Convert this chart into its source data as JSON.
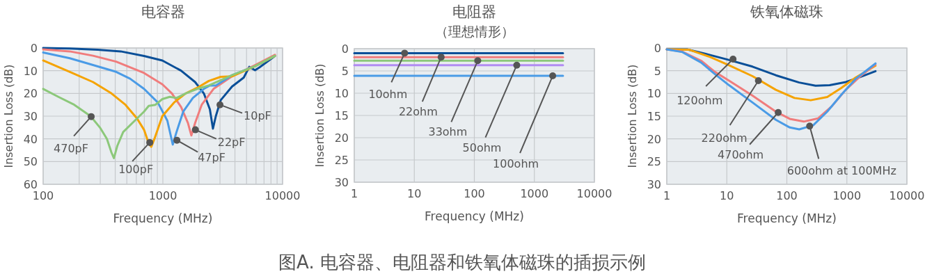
{
  "chart_data": [
    {
      "type": "line",
      "title": "电容器",
      "xlabel": "Frequency (MHz)",
      "ylabel": "Insertion Loss (dB)",
      "log": "x",
      "grid": true,
      "line_style": "solid",
      "xlim": [
        100,
        10000
      ],
      "ylim": [
        60,
        0
      ],
      "xticks": [
        100,
        {
          "value": 200,
          "label": null
        },
        {
          "value": 300,
          "label": null
        },
        {
          "value": 400,
          "label": null
        },
        {
          "value": 500,
          "label": null
        },
        {
          "value": 600,
          "label": null
        },
        {
          "value": 700,
          "label": null
        },
        {
          "value": 800,
          "label": null
        },
        {
          "value": 900,
          "label": null
        },
        1000,
        {
          "value": 2000,
          "label": null
        },
        {
          "value": 3000,
          "label": null
        },
        {
          "value": 4000,
          "label": null
        },
        {
          "value": 5000,
          "label": null
        },
        {
          "value": 6000,
          "label": null
        },
        {
          "value": 7000,
          "label": null
        },
        {
          "value": 8000,
          "label": null
        },
        {
          "value": 9000,
          "label": null
        },
        10000
      ],
      "yticks": [
        0,
        10,
        20,
        30,
        40,
        50,
        60
      ],
      "series": [
        {
          "color": "#0a4f98",
          "x": [
            100,
            167,
            285,
            445,
            696,
            990,
            1420,
            1860,
            2200,
            2470,
            2620,
            2770,
            3040,
            3780,
            4740,
            5270,
            5890,
            6430,
            8630
          ],
          "values": [
            0,
            0.2,
            0.8,
            1.5,
            3.5,
            5.5,
            10,
            15,
            20,
            27,
            35.5,
            30,
            23,
            17,
            13,
            8.3,
            9.8,
            8.5,
            3.5
          ]
        },
        {
          "color": "#f07c7c",
          "x": [
            100,
            167,
            261,
            407,
            696,
            990,
            1190,
            1420,
            1620,
            1730,
            1860,
            2110,
            2650,
            3780,
            5900,
            8630
          ],
          "values": [
            0.6,
            1.5,
            3.4,
            6,
            11,
            16,
            20,
            26,
            33,
            38.5,
            33,
            25,
            18,
            12.5,
            7.5,
            3
          ]
        },
        {
          "color": "#4a9be6",
          "x": [
            100,
            167,
            261,
            407,
            532,
            696,
            907,
            1090,
            1210,
            1300,
            1480,
            1780,
            2200,
            2470,
            2770,
            3780,
            5900,
            8630
          ],
          "values": [
            2,
            4.5,
            7.5,
            10.5,
            13.5,
            18,
            24,
            32,
            42.5,
            37,
            28,
            22,
            18,
            16.5,
            16.5,
            12,
            8,
            3.5
          ]
        },
        {
          "color": "#f5a300",
          "x": [
            100,
            167,
            261,
            372,
            487,
            608,
            696,
            762,
            800,
            850,
            990,
            1240,
            1550,
            1940,
            2420,
            3040,
            3780,
            5900,
            8630
          ],
          "values": [
            5.5,
            10.5,
            15,
            20,
            25,
            31,
            36,
            42,
            43.5,
            40,
            30,
            24,
            20,
            17.5,
            14.5,
            12.7,
            12.5,
            8,
            3.5
          ]
        },
        {
          "color": "#8cc87a",
          "x": [
            100,
            134,
            182,
            249,
            298,
            341,
            372,
            390,
            417,
            466,
            557,
            696,
            762,
            866,
            990,
            1140,
            1300,
            1550,
            1940,
            2420,
            3780,
            5900,
            8630
          ],
          "values": [
            18,
            21.5,
            25,
            30,
            35,
            40,
            46,
            48.5,
            43,
            37,
            33,
            28,
            25.5,
            25,
            22.5,
            21.5,
            22,
            20,
            18,
            16.5,
            12,
            8,
            3.5
          ]
        }
      ],
      "annotations": [
        {
          "text": "10pF",
          "x": 3000,
          "y": 25
        },
        {
          "text": "22pF",
          "x": 1870,
          "y": 36
        },
        {
          "text": "47pF",
          "x": 1310,
          "y": 40.6
        },
        {
          "text": "100pF",
          "x": 777,
          "y": 41.6
        },
        {
          "text": "470pF",
          "x": 252,
          "y": 30.2
        },
        "图A. 电容器、电阻器和铁氧体磁珠的插损示例"
      ]
    },
    {
      "type": "line",
      "title": "电阻器",
      "subtitle": "（理想情形）",
      "xlabel": "Frequency (MHz)",
      "ylabel": "Insertion Loss (dB)",
      "log": "x",
      "grid": true,
      "line_style": "solid",
      "xlim": [
        1,
        10000
      ],
      "ylim": [
        30,
        0
      ],
      "xticks": [
        1,
        10,
        100,
        1000,
        10000
      ],
      "yticks": [
        0,
        5,
        10,
        15,
        20,
        25,
        30
      ],
      "series": [
        {
          "color": "#0a4f98",
          "x": [
            1,
            3000
          ],
          "values": [
            1.0,
            1.0
          ]
        },
        {
          "color": "#f07c7c",
          "x": [
            1,
            3000
          ],
          "values": [
            1.9,
            1.9
          ]
        },
        {
          "color": "#8cc87a",
          "x": [
            1,
            3000
          ],
          "values": [
            2.7,
            2.7
          ]
        },
        {
          "color": "#b18cf2",
          "x": [
            1,
            3000
          ],
          "values": [
            3.7,
            3.7
          ]
        },
        {
          "color": "#4a9be6",
          "x": [
            1,
            3000
          ],
          "values": [
            6.1,
            6.1
          ]
        }
      ],
      "annotations": [
        {
          "text": "10ohm",
          "x": 6.9,
          "y": 1.0
        },
        {
          "text": "22ohm",
          "x": 28,
          "y": 1.9
        },
        {
          "text": "33ohm",
          "x": 114,
          "y": 2.7
        },
        {
          "text": "50ohm",
          "x": 509,
          "y": 3.7
        },
        {
          "text": "100ohm",
          "x": 2020,
          "y": 6.1
        }
      ]
    },
    {
      "type": "line",
      "title": "铁氧体磁珠",
      "xlabel": "Frequency (MHz)",
      "ylabel": "Insertion Loss (dB)",
      "log": "x",
      "grid": true,
      "line_style": "solid",
      "xlim": [
        1,
        10000
      ],
      "ylim": [
        30,
        0
      ],
      "xticks": [
        1,
        10,
        100,
        1000,
        10000
      ],
      "yticks": [
        0,
        5,
        10,
        15,
        20,
        25,
        30
      ],
      "series": [
        {
          "color": "#0a4f98",
          "x": [
            1,
            2.18,
            4.46,
            10,
            26.8,
            65.5,
            160,
            301,
            516,
            960,
            1510,
            3000
          ],
          "values": [
            0.3,
            0.3,
            1.3,
            2.5,
            4.1,
            6,
            7.6,
            8.3,
            8.2,
            7.5,
            6.6,
            5.1
          ]
        },
        {
          "color": "#f5a300",
          "x": [
            1,
            2.38,
            5.34,
            10.9,
            26.8,
            65.5,
            134,
            250,
            471,
            807,
            1400,
            3000
          ],
          "values": [
            0.3,
            0.4,
            2,
            3.8,
            6.2,
            9.2,
            11,
            11.5,
            10.8,
            8.8,
            6.5,
            3.9
          ]
        },
        {
          "color": "#f07c7c",
          "x": [
            1,
            1.82,
            3.73,
            6.4,
            10.9,
            26.8,
            65.5,
            112,
            192,
            330,
            564,
            960,
            1650,
            3000
          ],
          "values": [
            0.3,
            0.8,
            2.8,
            5.3,
            7.2,
            10.5,
            14,
            15.6,
            16.2,
            15.5,
            12.8,
            9.2,
            6.3,
            3.6
          ]
        },
        {
          "color": "#4a9be6",
          "x": [
            1,
            1.82,
            3.73,
            6.4,
            10.9,
            26.8,
            65.5,
            112,
            161,
            275,
            471,
            807,
            1400,
            3000
          ],
          "values": [
            0.3,
            0.9,
            3.2,
            5.8,
            8.2,
            12,
            15.8,
            17.5,
            17.9,
            17,
            14,
            10.3,
            6.8,
            3.4
          ]
        }
      ],
      "annotations": [
        {
          "text": "120ohm",
          "x": 12.7,
          "y": 2.45
        },
        {
          "text": "220ohm",
          "x": 33.6,
          "y": 7.2
        },
        {
          "text": "470ohm",
          "x": 71.8,
          "y": 14.2
        },
        {
          "text": "600ohm at 100MHz",
          "x": 240,
          "y": 17.2
        }
      ]
    }
  ]
}
